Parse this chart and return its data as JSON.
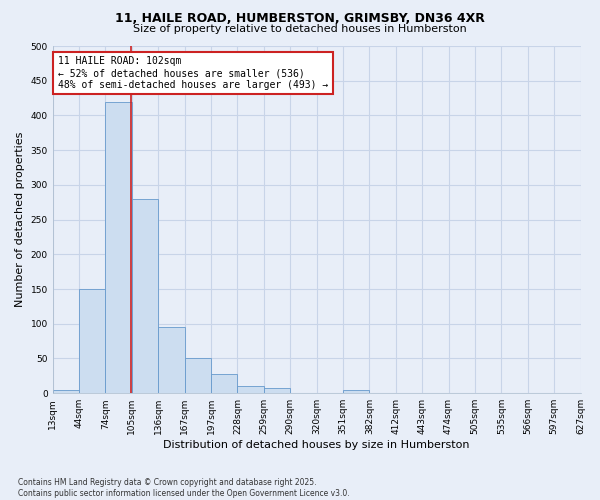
{
  "title_line1": "11, HAILE ROAD, HUMBERSTON, GRIMSBY, DN36 4XR",
  "title_line2": "Size of property relative to detached houses in Humberston",
  "xlabel": "Distribution of detached houses by size in Humberston",
  "ylabel": "Number of detached properties",
  "footnote": "Contains HM Land Registry data © Crown copyright and database right 2025.\nContains public sector information licensed under the Open Government Licence v3.0.",
  "bin_labels": [
    "13sqm",
    "44sqm",
    "74sqm",
    "105sqm",
    "136sqm",
    "167sqm",
    "197sqm",
    "228sqm",
    "259sqm",
    "290sqm",
    "320sqm",
    "351sqm",
    "382sqm",
    "412sqm",
    "443sqm",
    "474sqm",
    "505sqm",
    "535sqm",
    "566sqm",
    "597sqm",
    "627sqm"
  ],
  "bar_values": [
    5,
    150,
    420,
    280,
    95,
    50,
    28,
    10,
    8,
    0,
    0,
    4,
    0,
    0,
    0,
    0,
    0,
    0,
    0,
    0
  ],
  "bar_color": "#ccddf0",
  "bar_edge_color": "#6699cc",
  "grid_color": "#c8d4e8",
  "vline_position": 2.98,
  "vline_color": "#cc2222",
  "annotation_title": "11 HAILE ROAD: 102sqm",
  "annotation_line1": "← 52% of detached houses are smaller (536)",
  "annotation_line2": "48% of semi-detached houses are larger (493) →",
  "annotation_box_color": "white",
  "annotation_box_edge_color": "#cc2222",
  "ylim": [
    0,
    500
  ],
  "yticks": [
    0,
    50,
    100,
    150,
    200,
    250,
    300,
    350,
    400,
    450,
    500
  ],
  "background_color": "#e8eef8",
  "title_fontsize": 9,
  "subtitle_fontsize": 8,
  "ylabel_fontsize": 8,
  "xlabel_fontsize": 8,
  "tick_fontsize": 6.5,
  "annotation_fontsize": 7,
  "footnote_fontsize": 5.5
}
